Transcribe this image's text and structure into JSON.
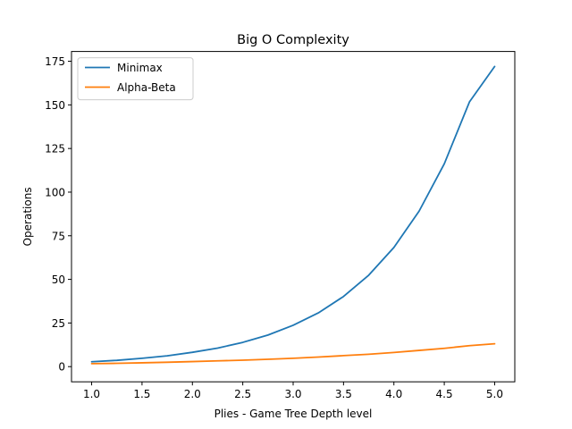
{
  "chart_data": {
    "type": "line",
    "title": "Big O Complexity",
    "xlabel": "Plies - Game Tree Depth level",
    "ylabel": "Operations",
    "xlim": [
      0.8,
      5.2
    ],
    "ylim": [
      -8.7,
      180.6
    ],
    "xticks": [
      "1.0",
      "1.5",
      "2.0",
      "2.5",
      "3.0",
      "3.5",
      "4.0",
      "4.5",
      "5.0"
    ],
    "yticks": [
      "0",
      "25",
      "50",
      "75",
      "100",
      "125",
      "150",
      "175"
    ],
    "grid": false,
    "legend_position": "top-left",
    "series": [
      {
        "name": "Minimax",
        "color": "#1f77b4",
        "x": [
          1.0,
          1.25,
          1.5,
          1.75,
          2.0,
          2.25,
          2.5,
          2.75,
          3.0,
          3.25,
          3.5,
          3.75,
          4.0,
          4.25,
          4.5,
          4.75,
          5.0
        ],
        "y": [
          2.8,
          3.6,
          4.8,
          6.2,
          8.2,
          10.6,
          13.9,
          18.1,
          23.7,
          30.8,
          40.2,
          52.4,
          68.3,
          89.1,
          116.2,
          151.7,
          172.0
        ]
      },
      {
        "name": "Alpha-Beta",
        "color": "#ff7f0e",
        "x": [
          1.0,
          1.25,
          1.5,
          1.75,
          2.0,
          2.25,
          2.5,
          2.75,
          3.0,
          3.25,
          3.5,
          3.75,
          4.0,
          4.25,
          4.5,
          4.75,
          5.0
        ],
        "y": [
          1.7,
          1.9,
          2.2,
          2.5,
          2.9,
          3.3,
          3.7,
          4.2,
          4.8,
          5.5,
          6.3,
          7.1,
          8.1,
          9.3,
          10.5,
          12.0,
          13.1
        ]
      }
    ]
  }
}
